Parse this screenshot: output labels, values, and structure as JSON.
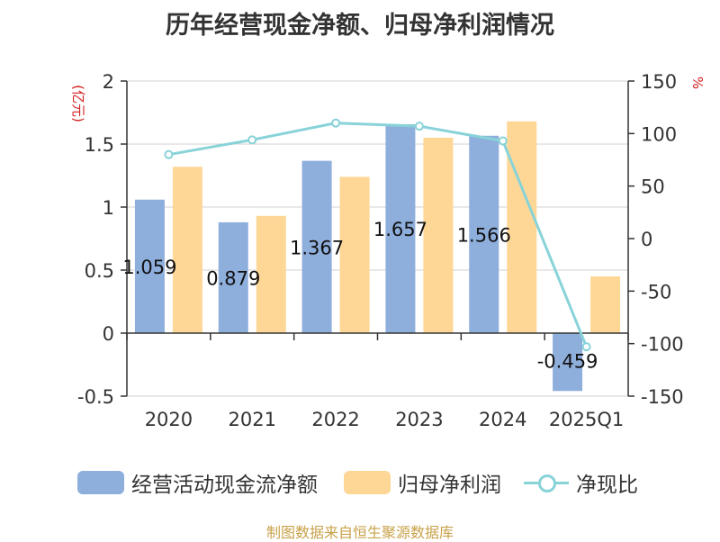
{
  "chart_data": {
    "type": "bar",
    "title": "历年经营现金净额、归母净利润情况",
    "categories": [
      "2020",
      "2021",
      "2022",
      "2023",
      "2024",
      "2025Q1"
    ],
    "y_left": {
      "unit": "(亿元)",
      "ticks": [
        "2",
        "1.5",
        "1",
        "0.5",
        "0",
        "-0.5"
      ],
      "ylim": [
        -0.5,
        2
      ]
    },
    "y_right": {
      "unit": "%",
      "ticks": [
        "150",
        "100",
        "50",
        "0",
        "-50",
        "-100",
        "-150"
      ],
      "ylim": [
        -150,
        150
      ]
    },
    "series": [
      {
        "name": "经营活动现金流净额",
        "kind": "bar",
        "axis": "left",
        "color": "#8eaedc",
        "values": [
          1.059,
          0.879,
          1.367,
          1.657,
          1.566,
          -0.459
        ],
        "labels": [
          "1.059",
          "0.879",
          "1.367",
          "1.657",
          "1.566",
          "-0.459"
        ]
      },
      {
        "name": "归母净利润",
        "kind": "bar",
        "axis": "left",
        "color": "#fed797",
        "values": [
          1.32,
          0.93,
          1.24,
          1.55,
          1.68,
          0.45
        ]
      },
      {
        "name": "净现比",
        "kind": "line",
        "axis": "right",
        "color": "#88d3d8",
        "values": [
          80,
          94,
          110,
          107,
          93,
          -103
        ]
      }
    ],
    "grid": true,
    "legend_position": "bottom"
  },
  "source": "制图数据来自恒生聚源数据库"
}
